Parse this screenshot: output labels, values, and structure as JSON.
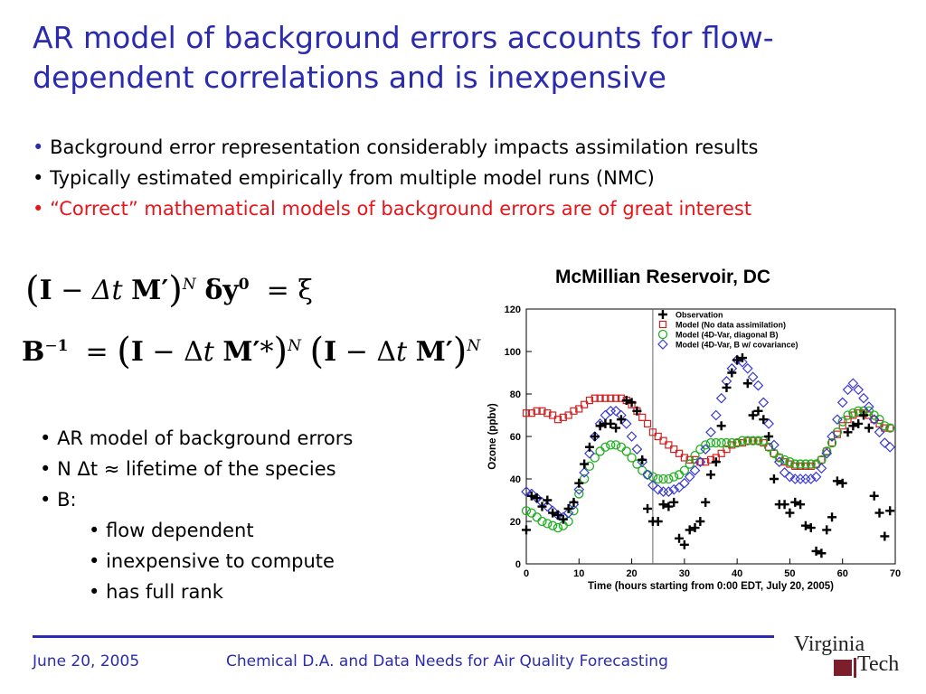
{
  "slide": {
    "title": "AR model of background errors accounts for flow-dependent correlations and is inexpensive",
    "bullets": [
      "Background error representation considerably impacts assimilation results",
      "Typically estimated empirically from multiple model runs (NMC)",
      "“Correct” mathematical models of background errors are of great interest"
    ],
    "ar_points": [
      "AR model of background errors",
      "N Δt ≈ lifetime of the species",
      "B:",
      "flow dependent",
      "inexpensive to compute",
      "has full rank"
    ],
    "footer_date": "June 20, 2005",
    "footer_text": "Chemical D.A. and Data Needs for Air Quality Forecasting",
    "logo_top": "Virginia",
    "logo_bottom": "Tech"
  },
  "colors": {
    "title": "#2b2bb0",
    "red": "#e8141b",
    "model_nda": "#d42020",
    "model_diag": "#20b020",
    "model_cov": "#3a3ad0",
    "obs": "#000000"
  },
  "chart_data": {
    "type": "scatter",
    "title": "McMillian Reservoir, DC",
    "xlabel": "Time (hours starting from 0:00 EDT, July 20, 2005)",
    "ylabel": "Ozone (ppbv)",
    "xlim": [
      0,
      70
    ],
    "ylim": [
      0,
      120
    ],
    "xticks": [
      0,
      10,
      20,
      30,
      40,
      50,
      60,
      70
    ],
    "yticks": [
      0,
      20,
      40,
      60,
      80,
      100,
      120
    ],
    "vline_x": 24,
    "legend": "top-right",
    "series": [
      {
        "name": "Observation",
        "marker": "plus",
        "x": [
          0,
          1,
          2,
          3,
          4,
          5,
          6,
          7,
          8,
          9,
          10,
          11,
          12,
          13,
          14,
          15,
          16,
          17,
          18,
          19,
          20,
          21,
          22,
          23,
          24,
          25,
          26,
          27,
          28,
          29,
          30,
          31,
          32,
          33,
          34,
          35,
          36,
          37,
          38,
          39,
          40,
          41,
          42,
          43,
          44,
          45,
          46,
          47,
          48,
          49,
          50,
          51,
          52,
          53,
          54,
          55,
          56,
          57,
          58,
          59,
          60,
          61,
          62,
          63,
          64,
          65,
          66,
          67,
          68,
          69
        ],
        "y": [
          16,
          32,
          31,
          27,
          30,
          24,
          23,
          21,
          26,
          29,
          38,
          47,
          55,
          60,
          65,
          66,
          66,
          64,
          68,
          77,
          76,
          72,
          49,
          26,
          20,
          20,
          28,
          27,
          29,
          12,
          9,
          16,
          17,
          20,
          29,
          42,
          48,
          65,
          83,
          90,
          96,
          97,
          85,
          70,
          72,
          68,
          60,
          40,
          28,
          28,
          24,
          29,
          28,
          18,
          17,
          6,
          5,
          16,
          22,
          39,
          38,
          62,
          65,
          66,
          70,
          64,
          32,
          24,
          13,
          25
        ]
      },
      {
        "name": "Model (No data assimilation)",
        "marker": "square",
        "x": [
          0,
          1,
          2,
          3,
          4,
          5,
          6,
          7,
          8,
          9,
          10,
          11,
          12,
          13,
          14,
          15,
          16,
          17,
          18,
          19,
          20,
          21,
          22,
          23,
          24,
          25,
          26,
          27,
          28,
          29,
          30,
          31,
          32,
          33,
          34,
          35,
          36,
          37,
          38,
          39,
          40,
          41,
          42,
          43,
          44,
          45,
          46,
          47,
          48,
          49,
          50,
          51,
          52,
          53,
          54,
          55,
          56,
          57,
          58,
          59,
          60,
          61,
          62,
          63,
          64,
          65,
          66,
          67,
          68,
          69
        ],
        "y": [
          71,
          71,
          72,
          72,
          71,
          70,
          68,
          69,
          70,
          72,
          73,
          75,
          77,
          78,
          78,
          78,
          78,
          78,
          78,
          77,
          75,
          72,
          69,
          66,
          62,
          60,
          58,
          56,
          54,
          52,
          50,
          49,
          49,
          48,
          48,
          49,
          50,
          52,
          54,
          56,
          57,
          57,
          58,
          58,
          58,
          57,
          55,
          52,
          50,
          48,
          47,
          46,
          46,
          46,
          46,
          47,
          49,
          53,
          57,
          61,
          65,
          68,
          70,
          71,
          71,
          70,
          68,
          66,
          64,
          64
        ]
      },
      {
        "name": "Model (4D-Var, diagonal B)",
        "marker": "circle",
        "x": [
          0,
          1,
          2,
          3,
          4,
          5,
          6,
          7,
          8,
          9,
          10,
          11,
          12,
          13,
          14,
          15,
          16,
          17,
          18,
          19,
          20,
          21,
          22,
          23,
          24,
          25,
          26,
          27,
          28,
          29,
          30,
          31,
          32,
          33,
          34,
          35,
          36,
          37,
          38,
          39,
          40,
          41,
          42,
          43,
          44,
          45,
          46,
          47,
          48,
          49,
          50,
          51,
          52,
          53,
          54,
          55,
          56,
          57,
          58,
          59,
          60,
          61,
          62,
          63,
          64,
          65,
          66,
          67,
          68,
          69
        ],
        "y": [
          25,
          24,
          22,
          20,
          19,
          18,
          17,
          18,
          20,
          25,
          33,
          40,
          46,
          50,
          53,
          55,
          56,
          56,
          55,
          53,
          50,
          47,
          44,
          42,
          41,
          40,
          40,
          40,
          41,
          42,
          44,
          47,
          51,
          54,
          56,
          57,
          57,
          57,
          57,
          57,
          57,
          58,
          58,
          58,
          58,
          58,
          55,
          52,
          50,
          49,
          48,
          47,
          47,
          47,
          47,
          47,
          49,
          53,
          57,
          62,
          67,
          70,
          71,
          72,
          72,
          72,
          70,
          68,
          65,
          64
        ]
      },
      {
        "name": "Model (4D-Var, B w/ covariance)",
        "marker": "diamond",
        "x": [
          0,
          1,
          2,
          3,
          4,
          5,
          6,
          7,
          8,
          9,
          10,
          11,
          12,
          13,
          14,
          15,
          16,
          17,
          18,
          19,
          20,
          21,
          22,
          23,
          24,
          25,
          26,
          27,
          28,
          29,
          30,
          31,
          32,
          33,
          34,
          35,
          36,
          37,
          38,
          39,
          40,
          41,
          42,
          43,
          44,
          45,
          46,
          47,
          48,
          49,
          50,
          51,
          52,
          53,
          54,
          55,
          56,
          57,
          58,
          59,
          60,
          61,
          62,
          63,
          64,
          65,
          66,
          67,
          68,
          69
        ],
        "y": [
          34,
          33,
          31,
          29,
          27,
          25,
          23,
          22,
          24,
          28,
          35,
          43,
          52,
          60,
          66,
          70,
          72,
          72,
          70,
          66,
          60,
          54,
          48,
          42,
          37,
          35,
          34,
          34,
          35,
          36,
          38,
          41,
          44,
          48,
          54,
          62,
          70,
          78,
          86,
          92,
          96,
          95,
          92,
          88,
          84,
          76,
          66,
          56,
          48,
          43,
          41,
          40,
          40,
          40,
          40,
          41,
          45,
          52,
          60,
          68,
          76,
          82,
          85,
          82,
          78,
          74,
          68,
          62,
          57,
          55
        ]
      }
    ]
  }
}
